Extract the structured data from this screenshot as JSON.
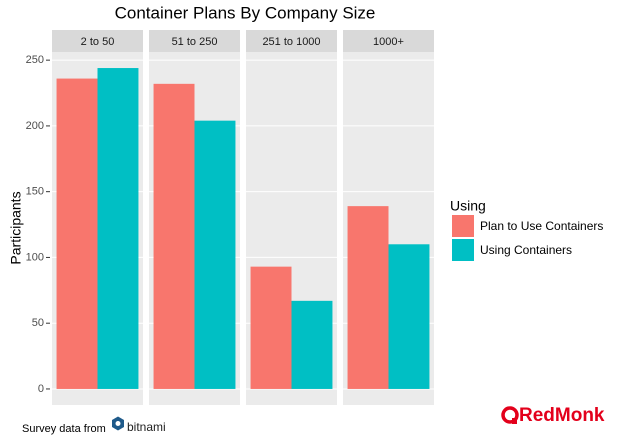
{
  "chart_data": {
    "type": "bar",
    "title": "Container Plans By Company Size",
    "y_label": "Participants",
    "facets": [
      "2 to 50",
      "51 to 250",
      "251 to 1000",
      "1000+"
    ],
    "legend_title": "Using",
    "series": [
      {
        "name": "Plan to Use Containers",
        "color": "#f8766d",
        "values": [
          236,
          232,
          93,
          139
        ]
      },
      {
        "name": "Using Containers",
        "color": "#00bfc4",
        "values": [
          244,
          204,
          67,
          110
        ]
      }
    ],
    "ylim": [
      -12.2,
      256.2
    ],
    "yticks": [
      0,
      50,
      100,
      150,
      200,
      250
    ],
    "grid": true
  },
  "footer": {
    "source": "Survey data from",
    "source_logo": "bitnami",
    "brand": "RedMonk"
  }
}
